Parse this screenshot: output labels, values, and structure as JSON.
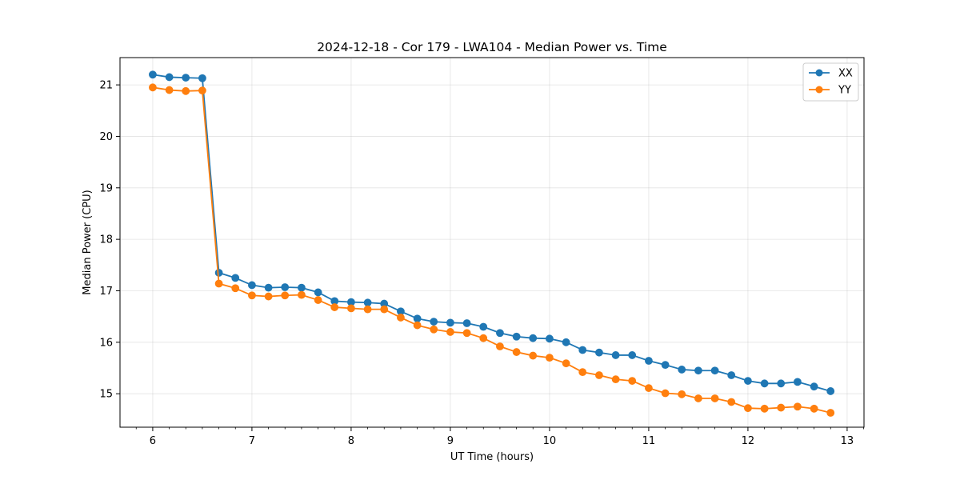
{
  "chart_data": {
    "type": "line",
    "title": "2024-12-18 - Cor 179 - LWA104 - Median Power vs. Time",
    "xlabel": "UT Time (hours)",
    "ylabel": "Median Power (CPU)",
    "xlim": [
      5.67,
      13.17
    ],
    "ylim": [
      14.35,
      21.53
    ],
    "xticks": [
      6,
      7,
      8,
      9,
      10,
      11,
      12,
      13
    ],
    "yticks": [
      15,
      16,
      17,
      18,
      19,
      20,
      21
    ],
    "grid": true,
    "legend_position": "top-right",
    "x": [
      6.0,
      6.167,
      6.333,
      6.5,
      6.667,
      6.833,
      7.0,
      7.167,
      7.333,
      7.5,
      7.667,
      7.833,
      8.0,
      8.167,
      8.333,
      8.5,
      8.667,
      8.833,
      9.0,
      9.167,
      9.333,
      9.5,
      9.667,
      9.833,
      10.0,
      10.167,
      10.333,
      10.5,
      10.667,
      10.833,
      11.0,
      11.167,
      11.333,
      11.5,
      11.667,
      11.833,
      12.0,
      12.167,
      12.333,
      12.5,
      12.667,
      12.833
    ],
    "series": [
      {
        "name": "XX",
        "color": "#1f77b4",
        "values": [
          21.2,
          21.15,
          21.14,
          21.13,
          17.35,
          17.25,
          17.11,
          17.06,
          17.07,
          17.06,
          16.97,
          16.8,
          16.78,
          16.77,
          16.75,
          16.6,
          16.46,
          16.4,
          16.38,
          16.37,
          16.3,
          16.18,
          16.11,
          16.08,
          16.07,
          16.0,
          15.85,
          15.8,
          15.75,
          15.75,
          15.64,
          15.56,
          15.47,
          15.45,
          15.45,
          15.36,
          15.25,
          15.2,
          15.2,
          15.23,
          15.14,
          15.05
        ]
      },
      {
        "name": "YY",
        "color": "#ff7f0e",
        "values": [
          20.95,
          20.9,
          20.88,
          20.89,
          17.14,
          17.05,
          16.91,
          16.89,
          16.91,
          16.92,
          16.82,
          16.68,
          16.66,
          16.64,
          16.64,
          16.48,
          16.33,
          16.25,
          16.2,
          16.18,
          16.08,
          15.92,
          15.81,
          15.74,
          15.7,
          15.59,
          15.42,
          15.36,
          15.28,
          15.25,
          15.11,
          15.01,
          14.99,
          14.91,
          14.91,
          14.84,
          14.72,
          14.71,
          14.73,
          14.75,
          14.71,
          14.63
        ]
      }
    ]
  }
}
